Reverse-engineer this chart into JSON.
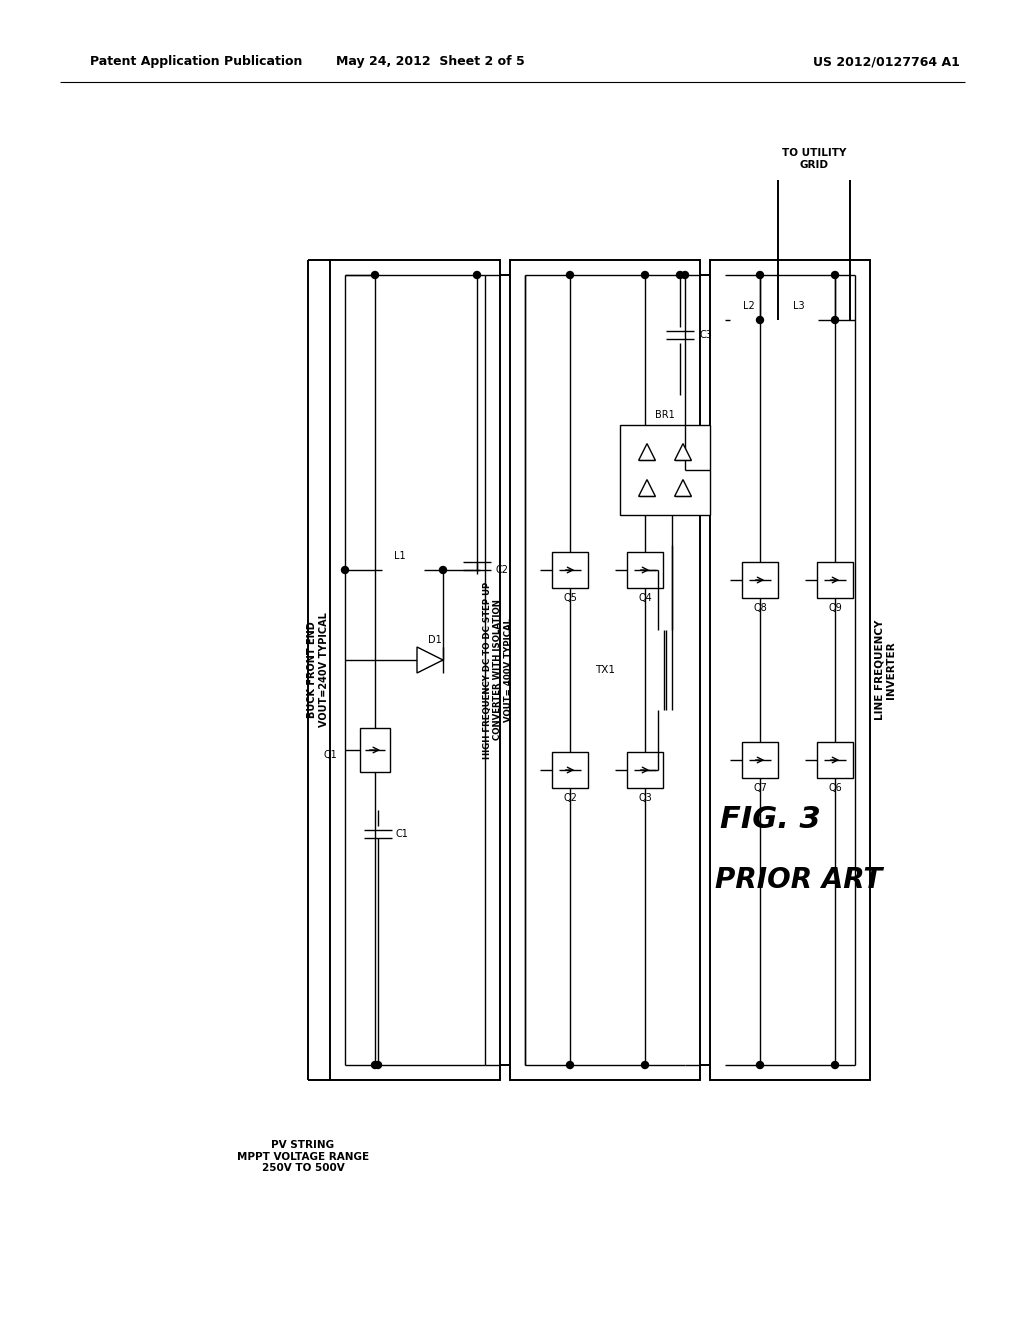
{
  "header_left": "Patent Application Publication",
  "header_center": "May 24, 2012  Sheet 2 of 5",
  "header_right": "US 2012/0127764 A1",
  "fig_label": "FIG. 3",
  "fig_sublabel": "PRIOR ART",
  "label_block1": "BUCK FRONT END\nVOUT=240V TYPICAL",
  "label_block2": "HIGH FREQUENCY DC TO DC STEP UP\nCONVERTER WITH ISOLATION\nVOUT= 400V TYPICAL",
  "label_block3": "LINE FREQUENCY\nINVERTER",
  "label_input": "PV STRING\nMPPT VOLTAGE RANGE\n250V TO 500V",
  "label_output": "TO UTILITY\nGRID",
  "bg": "#ffffff",
  "fg": "#000000"
}
